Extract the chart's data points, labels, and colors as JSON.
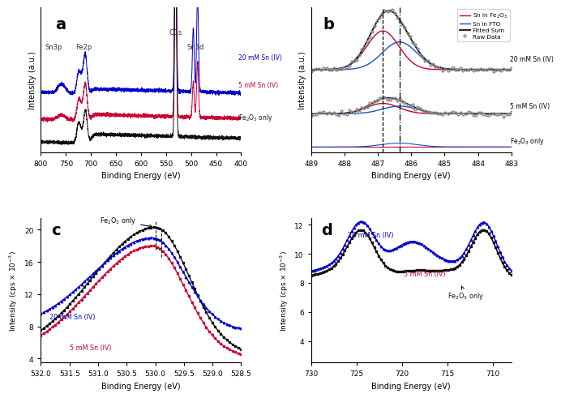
{
  "panel_a": {
    "xlabel": "Binding Energy (eV)",
    "ylabel": "Intensity (a.u.)",
    "label": "a",
    "xlim": [
      800,
      400
    ],
    "traces": [
      "20 mM Sn (IV)",
      "5 mM Sn (IV)",
      "Fe₂O₃ only"
    ],
    "colors": [
      "#0000CC",
      "#CC0033",
      "#111111"
    ]
  },
  "panel_b": {
    "xlabel": "Binding Energy (eV)",
    "ylabel": "Intensity (a.u.)",
    "label": "b",
    "xlim": [
      489,
      483
    ],
    "xticks": [
      489,
      488,
      487,
      486,
      485,
      484,
      483
    ],
    "vline_dashed": 486.85,
    "vline_dashdot": 486.35,
    "legend": [
      "Sn in Fe₂O₃",
      "Sn in FTO",
      "Fitted Sum",
      "Raw Data"
    ],
    "legend_colors": [
      "#CC0033",
      "#1155CC",
      "#111111",
      "#888888"
    ],
    "traces": [
      "20 mM Sn (IV)",
      "5 mM Sn (IV)",
      "Fe₂O₃ only"
    ]
  },
  "panel_c": {
    "xlabel": "Binding Energy (eV)",
    "ylabel": "Intensity (cps × 10⁻³)",
    "label": "c",
    "xlim": [
      532.0,
      528.5
    ],
    "xticks": [
      532.0,
      531.5,
      531.0,
      530.5,
      530.0,
      529.5,
      529.0,
      528.5
    ],
    "ylim": [
      3.5,
      21.5
    ],
    "yticks": [
      4,
      8,
      12,
      16,
      20
    ],
    "traces": [
      "Fe₂O₃ only",
      "20 mM Sn (IV)",
      "5 mM Sn (IV)"
    ],
    "colors": [
      "#111111",
      "#0000CC",
      "#CC0033"
    ],
    "vlines": [
      530.0,
      529.85
    ]
  },
  "panel_d": {
    "xlabel": "Binding Energy (eV)",
    "ylabel": "Intensity (cps × 10⁻³)",
    "label": "d",
    "xlim": [
      730,
      708
    ],
    "xticks": [
      730,
      725,
      720,
      715,
      710
    ],
    "ylim": [
      2.5,
      12.5
    ],
    "yticks": [
      4,
      6,
      8,
      10,
      12
    ],
    "traces": [
      "20 mM Sn (IV)",
      "5 mM Sn (IV)",
      "Fe₂O₃ only"
    ],
    "colors": [
      "#0000CC",
      "#CC0033",
      "#111111"
    ]
  }
}
